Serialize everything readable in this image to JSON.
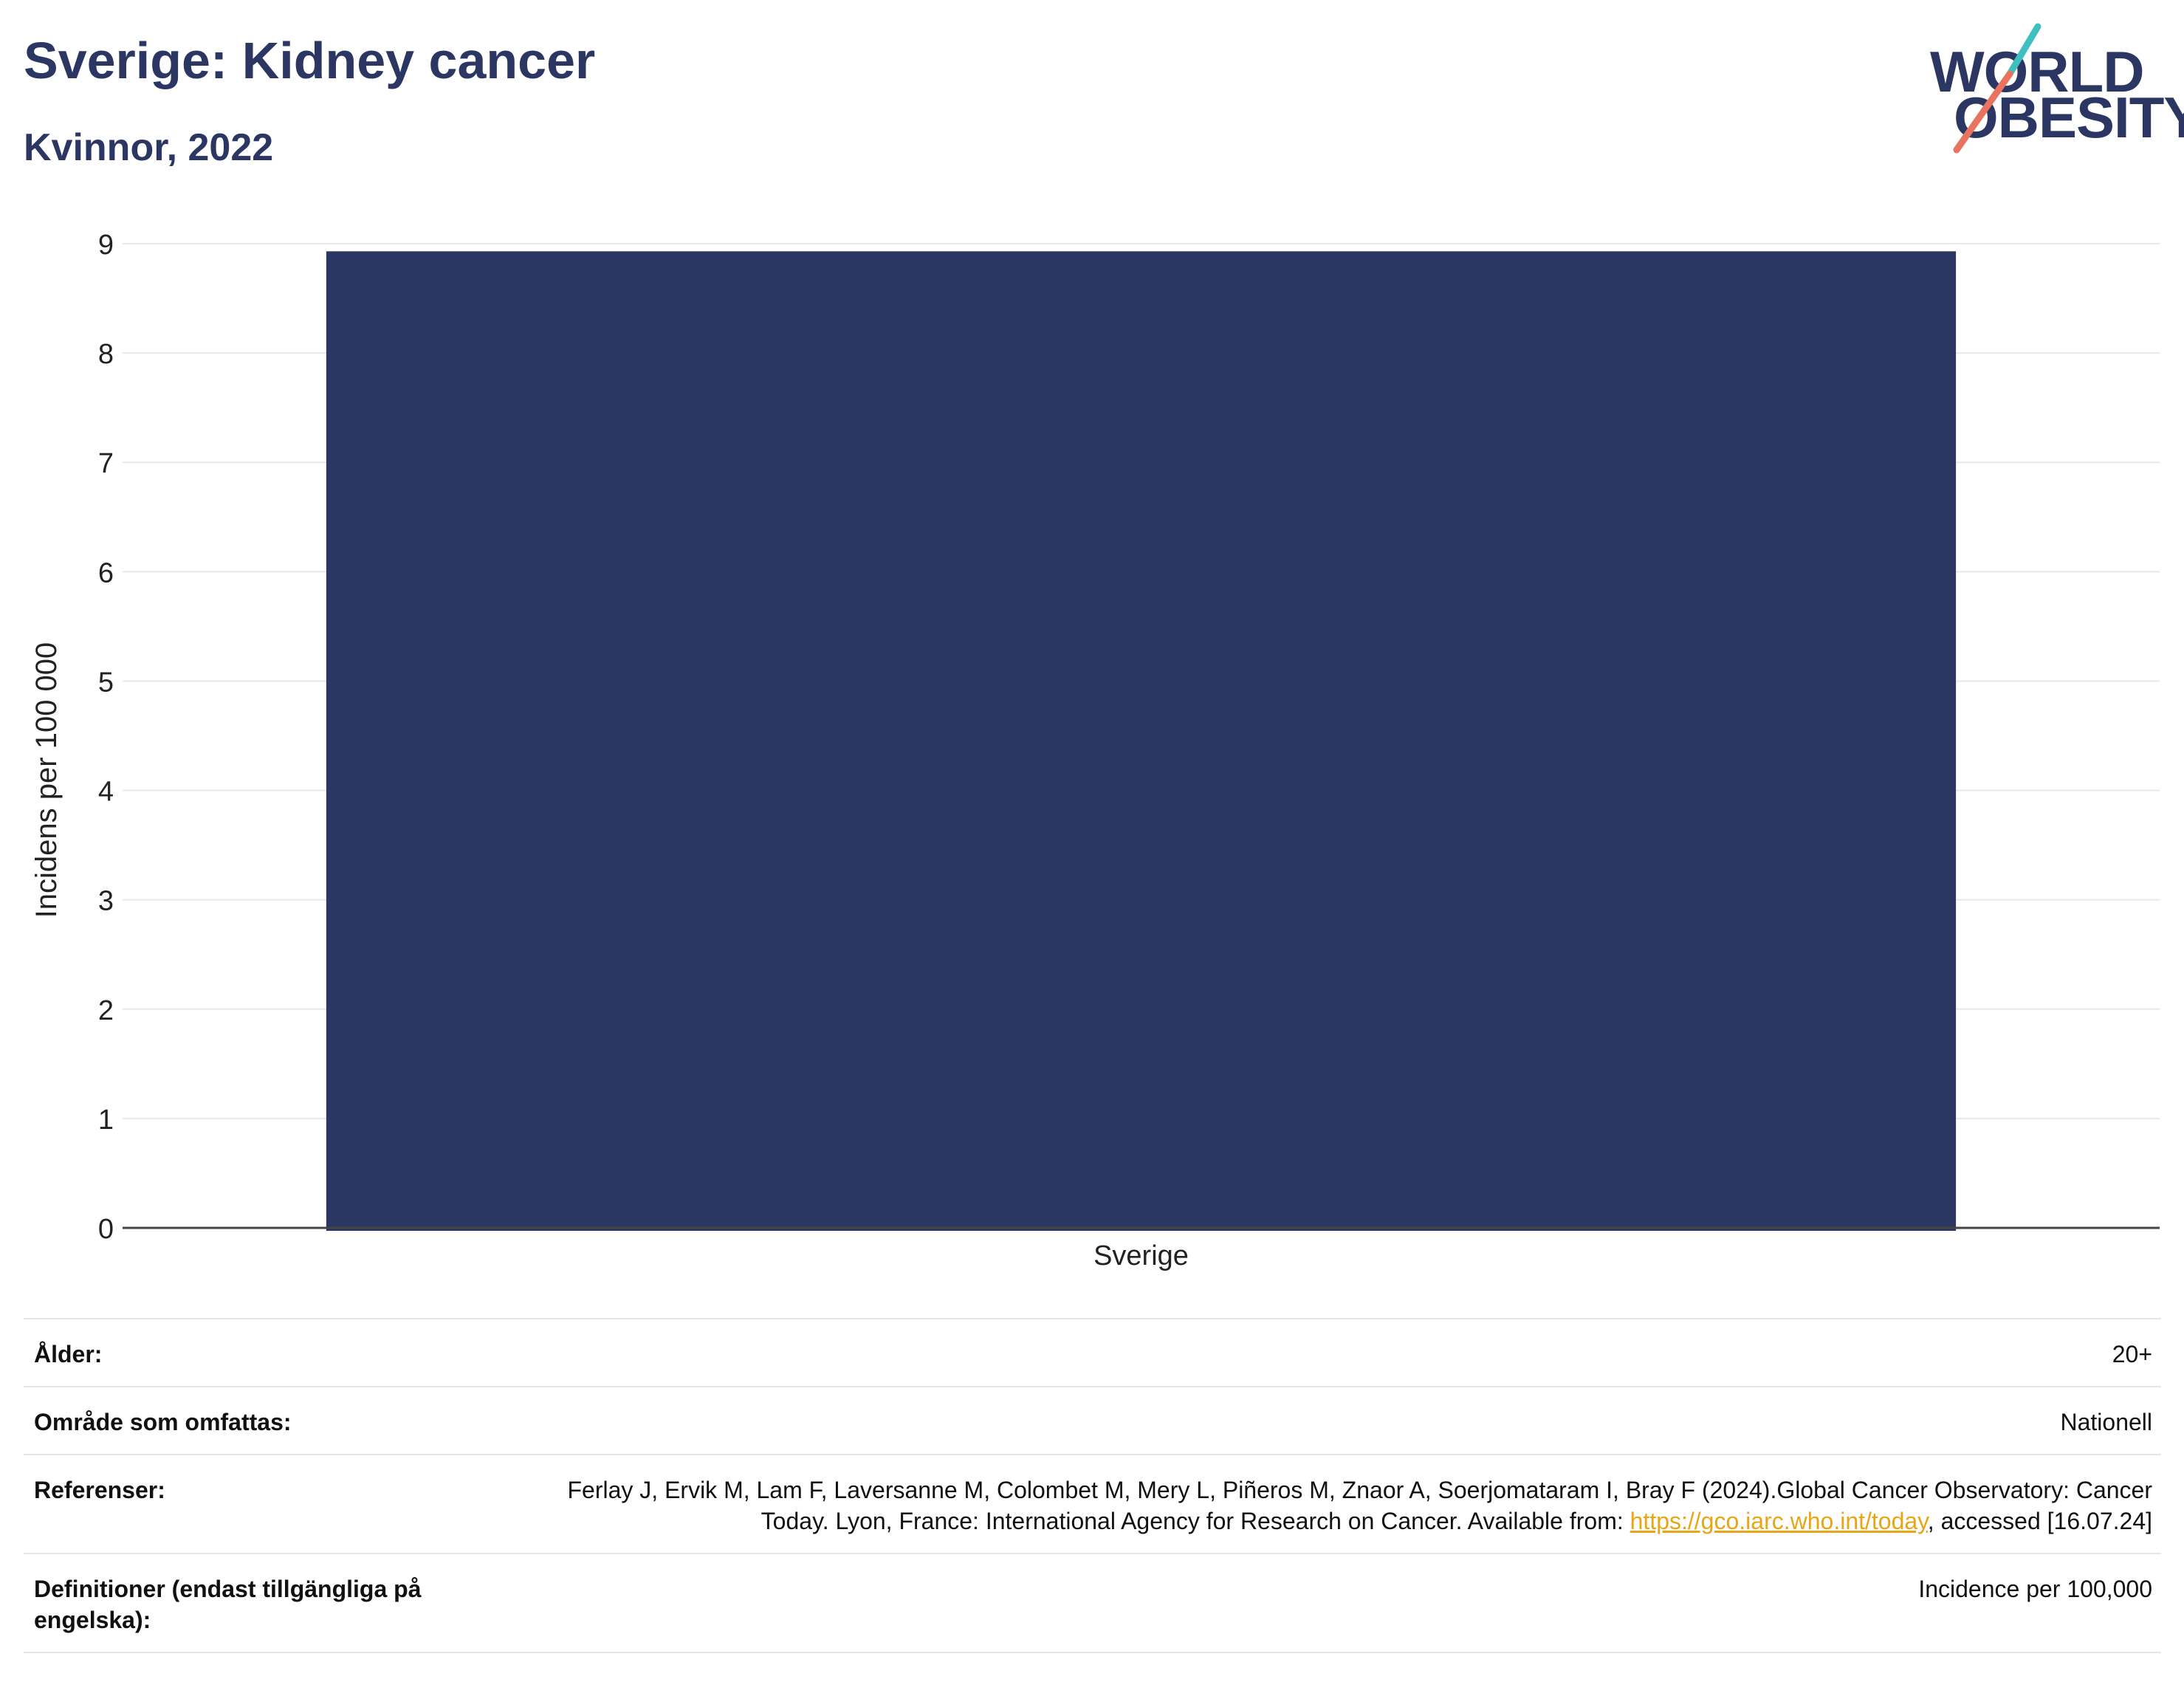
{
  "header": {
    "title": "Sverige: Kidney cancer",
    "subtitle": "Kvinnor, 2022"
  },
  "logo": {
    "line1": "WORLD",
    "line2": "OBESITY"
  },
  "colors": {
    "bar": "#2b3663",
    "title": "#2b3663",
    "link": "#e8a617",
    "logo_teal": "#3fbfbf",
    "logo_coral": "#e8735f"
  },
  "chart_data": {
    "type": "bar",
    "categories": [
      "Sverige"
    ],
    "values": [
      8.93
    ],
    "title": "Sverige: Kidney cancer",
    "subtitle": "Kvinnor, 2022",
    "xlabel": "",
    "ylabel": "Incidens per 100 000",
    "ylim": [
      0,
      9
    ],
    "yticks": [
      0,
      1,
      2,
      3,
      4,
      5,
      6,
      7,
      8,
      9
    ],
    "grid": true,
    "legend": "none"
  },
  "info": {
    "age": {
      "label": "Ålder:",
      "value": "20+"
    },
    "area": {
      "label": "Område som omfattas:",
      "value": "Nationell"
    },
    "refs": {
      "label": "Referenser:",
      "text_before": "Ferlay J, Ervik M, Lam F, Laversanne M, Colombet M, Mery L, Piñeros M, Znaor A, Soerjomataram I, Bray F (2024).Global Cancer Observatory: Cancer Today. Lyon, France: International Agency for Research on Cancer. Available from: ",
      "link": "https://gco.iarc.who.int/today",
      "text_after": ", accessed [16.07.24]"
    },
    "defs": {
      "label": "Definitioner (endast tillgängliga på engelska):",
      "value": "Incidence per 100,000"
    }
  }
}
